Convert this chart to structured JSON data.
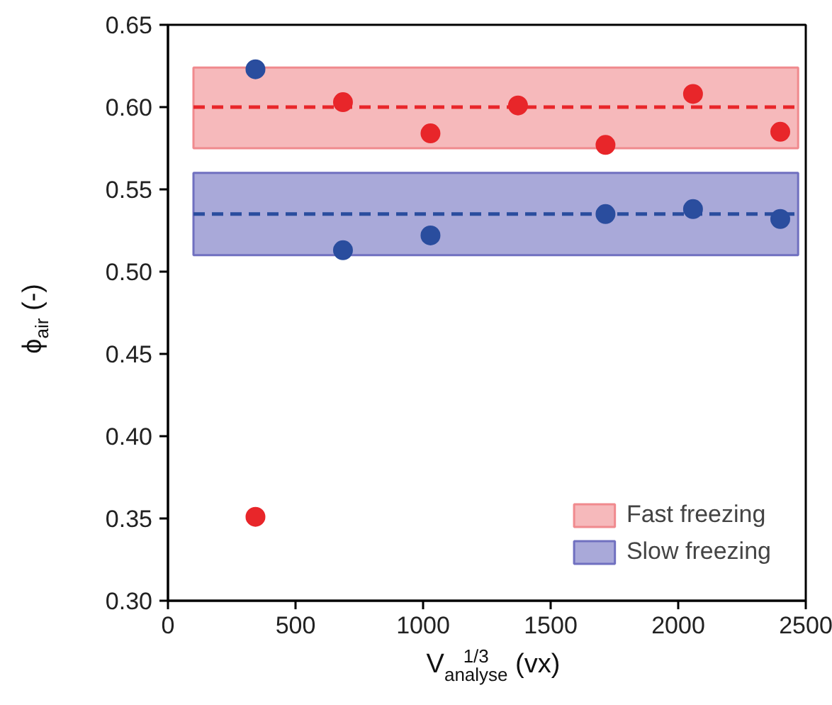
{
  "chart_data": {
    "type": "scatter",
    "xlabel": "V$^{1/3}$$_{analyse}$ (vx)",
    "ylabel": "ϕ$_{air}$ (-)",
    "xlim": [
      0,
      2500
    ],
    "xticks": [
      0,
      500,
      1000,
      1500,
      2000,
      2500
    ],
    "ylim": [
      0.3,
      0.65
    ],
    "yticks": [
      {
        "value": 0.3,
        "label": "0.30"
      },
      {
        "value": 0.35,
        "label": "0.35"
      },
      {
        "value": 0.4,
        "label": "0.40"
      },
      {
        "value": 0.45,
        "label": "0.45"
      },
      {
        "value": 0.5,
        "label": "0.50"
      },
      {
        "value": 0.55,
        "label": "0.55"
      },
      {
        "value": 0.6,
        "label": "0.60"
      },
      {
        "value": 0.65,
        "label": "0.65"
      }
    ],
    "marker": "circle",
    "grid": false,
    "legend": "bottom right",
    "series": [
      {
        "color": "#e8262a",
        "x": [
          343,
          686,
          1029,
          1372,
          1715,
          2058,
          2400
        ],
        "values": [
          0.351,
          0.603,
          0.584,
          0.601,
          0.577,
          0.608,
          0.585
        ]
      },
      {
        "color": "#2a4d9e",
        "x": [
          343,
          686,
          1029,
          1715,
          2058,
          2400
        ],
        "values": [
          0.623,
          0.513,
          0.522,
          0.535,
          0.538,
          0.532
        ]
      }
    ],
    "ref_lines": [
      {
        "axis": "y",
        "value": 0.6,
        "color": "#e8262a",
        "line_style": "dashed"
      },
      {
        "axis": "y",
        "value": 0.535,
        "color": "#2a4d9e",
        "line_style": "dashed"
      }
    ],
    "bands": [
      {
        "axis": "y",
        "from": 0.575,
        "to": 0.624,
        "label": "Fast freezing",
        "color": "#f08a8e"
      },
      {
        "axis": "y",
        "from": 0.51,
        "to": 0.56,
        "label": "Slow freezing",
        "color": "#7070c0"
      }
    ]
  }
}
